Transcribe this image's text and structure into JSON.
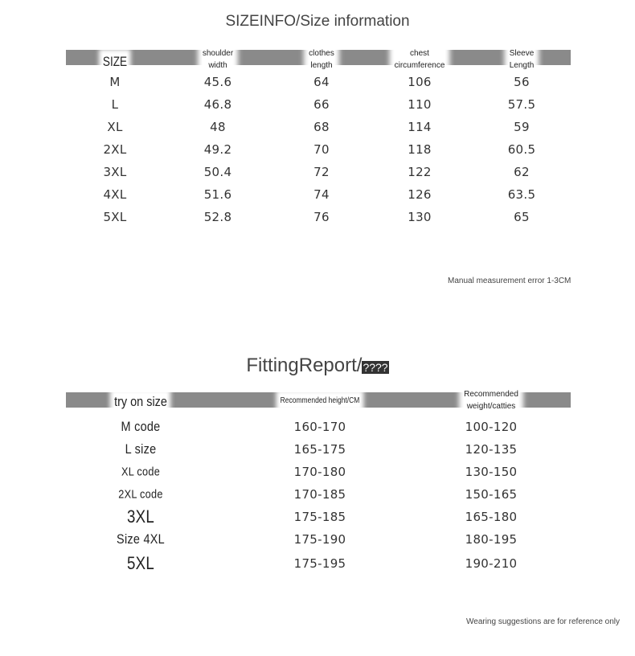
{
  "size_info": {
    "title": "SIZEINFO/Size information",
    "headers": [
      "SIZE",
      "shoulder width",
      "clothes length",
      "chest circumference",
      "Sleeve Length"
    ],
    "header_lines": [
      [
        "SIZE"
      ],
      [
        "shoulder",
        "width"
      ],
      [
        "clothes",
        "length"
      ],
      [
        "chest",
        "circumference"
      ],
      [
        "Sleeve",
        "Length"
      ]
    ],
    "rows": [
      [
        "M",
        "45.6",
        "64",
        "106",
        "56"
      ],
      [
        "L",
        "46.8",
        "66",
        "110",
        "57.5"
      ],
      [
        "XL",
        "48",
        "68",
        "114",
        "59"
      ],
      [
        "2XL",
        "49.2",
        "70",
        "118",
        "60.5"
      ],
      [
        "3XL",
        "50.4",
        "72",
        "122",
        "62"
      ],
      [
        "4XL",
        "51.6",
        "74",
        "126",
        "63.5"
      ],
      [
        "5XL",
        "52.8",
        "76",
        "130",
        "65"
      ]
    ],
    "note": "Manual measurement error 1-3CM"
  },
  "fitting_report": {
    "title": "FittingReport/",
    "title_masked": "????",
    "header_lines": [
      [
        "try on size"
      ],
      [
        "Recommended height/CM"
      ],
      [
        "Recommended",
        "weight/catties"
      ]
    ],
    "rows": [
      [
        "M code",
        "160-170",
        "100-120"
      ],
      [
        "L size",
        "165-175",
        "120-135"
      ],
      [
        "XL code",
        "170-180",
        "130-150"
      ],
      [
        "2XL code",
        "170-185",
        "150-165"
      ],
      [
        "3XL",
        "175-185",
        "165-180"
      ],
      [
        "Size 4XL",
        "175-190",
        "180-195"
      ],
      [
        "5XL",
        "175-195",
        "190-210"
      ]
    ],
    "note": "Wearing suggestions are for reference only"
  },
  "colors": {
    "band": "#8a8a8a",
    "text": "#333333"
  }
}
